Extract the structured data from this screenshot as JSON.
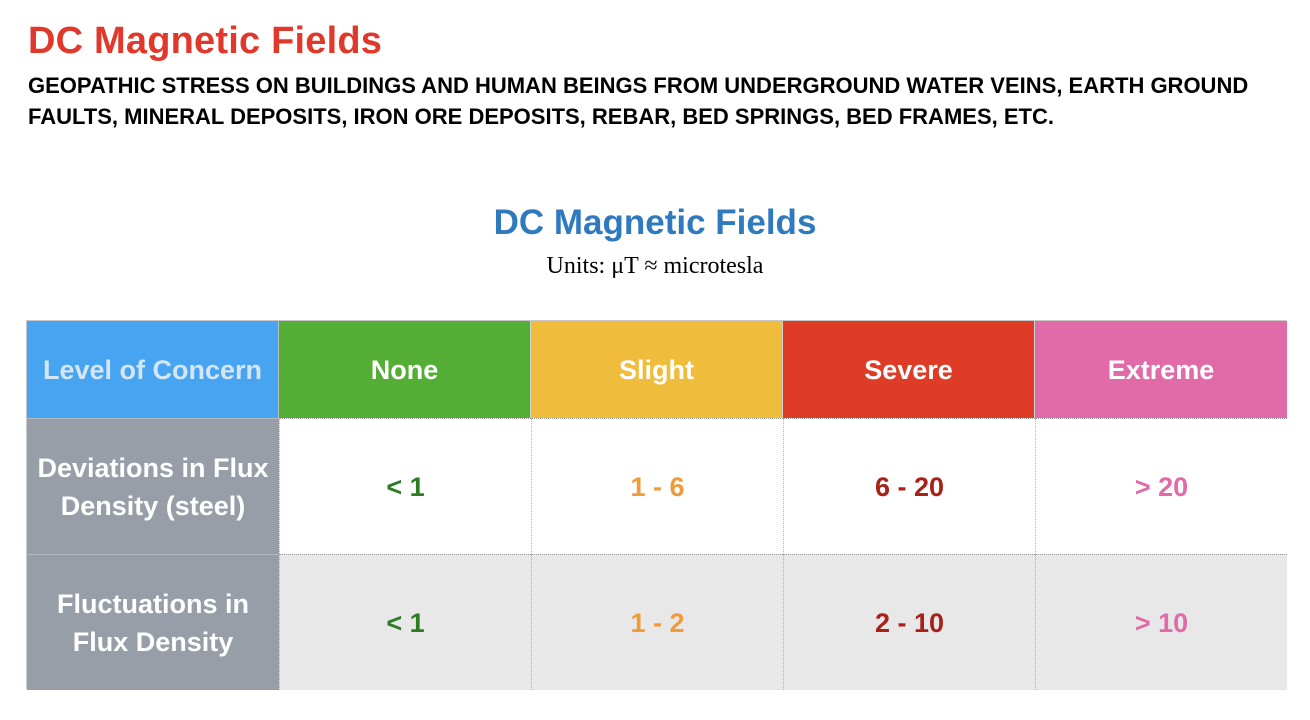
{
  "header": {
    "title": "DC Magnetic Fields",
    "subtitle": "GEOPATHIC STRESS ON BUILDINGS AND HUMAN BEINGS FROM UNDERGROUND WATER VEINS, EARTH GROUND FAULTS, MINERAL DEPOSITS, IRON ORE DEPOSITS, REBAR, BED SPRINGS, BED FRAMES, ETC."
  },
  "table": {
    "title": "DC Magnetic Fields",
    "units": "Units: μT ≈ microtesla",
    "corner_label": "Level of Concern",
    "columns": [
      "None",
      "Slight",
      "Severe",
      "Extreme"
    ],
    "rows": [
      {
        "label": "Deviations in Flux Density (steel)",
        "values": [
          "< 1",
          "1 - 6",
          "6 - 20",
          "> 20"
        ]
      },
      {
        "label": "Fluctuations in Flux Density",
        "values": [
          "< 1",
          "1 - 2",
          "2 - 10",
          "> 10"
        ]
      }
    ]
  },
  "colors": {
    "title_red": "#e0392b",
    "table_title_blue": "#2f79be",
    "corner_blue": "#47a4f1",
    "none_green": "#54ad34",
    "slight_yellow": "#f0bc3c",
    "severe_red": "#de3c26",
    "extreme_pink": "#e06ba8",
    "rowhead_gray": "#979ea8"
  }
}
